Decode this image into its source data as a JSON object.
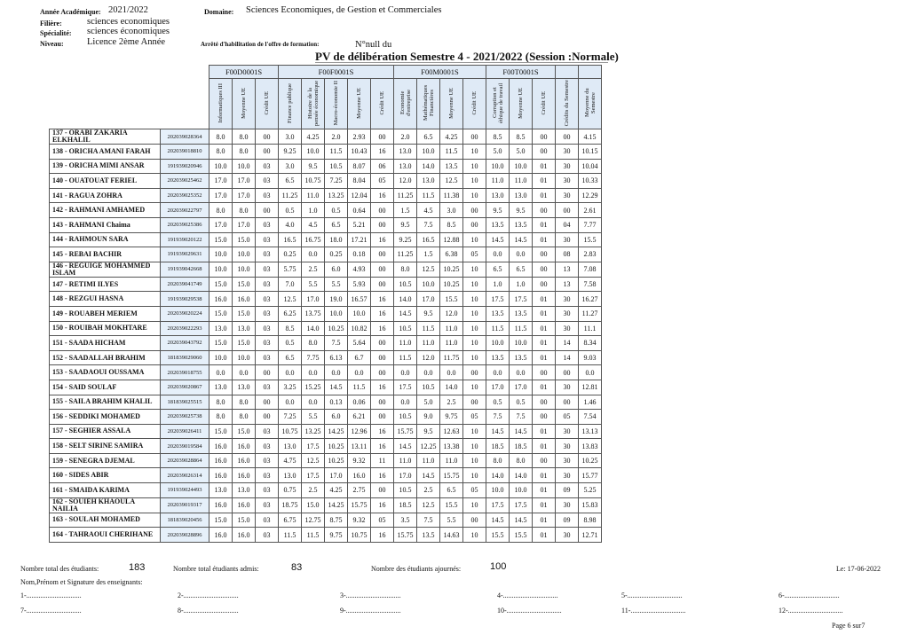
{
  "header": {
    "annee_label": "Année Académique:",
    "annee_value": "2021/2022",
    "filiere_label": "Filière:",
    "filiere_value": "sciences economiques",
    "specialite_label": "Spécialité:",
    "specialite_value": "sciences économiques",
    "niveau_label": "Niveau:",
    "niveau_value": "Licence 2ème Année",
    "domaine_label": "Domaine:",
    "domaine_value": "Sciences Economiques, de Gestion et Commerciales",
    "arrete_label": "Arrêté d'habilitation de l'offre de formation:",
    "arrete_value": "N°null  du",
    "title": "PV de délibération Semestre 4  -  2021/2022 (Session :Normale)"
  },
  "table": {
    "groups": [
      {
        "label": "F00D0001S",
        "span": 3
      },
      {
        "label": "F00F0001S",
        "span": 5
      },
      {
        "label": "F00M0001S",
        "span": 4
      },
      {
        "label": "F00T0001S",
        "span": 3
      },
      {
        "label": "",
        "span": 1
      },
      {
        "label": "",
        "span": 1
      }
    ],
    "columns": [
      "Informatiques III",
      "Moyenne UE",
      "Crédit UE",
      "Finance publique",
      "Histoire de la pensée économique",
      "Macro-économie II",
      "Moyenne UE",
      "Crédit UE",
      "Economie d'entreprise",
      "Mathématiques Financières",
      "Moyenne UE",
      "Crédit UE",
      "Corruption et éthique de travail",
      "Moyenne UE",
      "Crédit UE",
      "Crédits du Semestre",
      "Moyenne du Semestre"
    ],
    "rows": [
      {
        "name": "137 - ORABI ZAKARIA ELKHALIL",
        "id": "202039028364",
        "v": [
          "8.0",
          "8.0",
          "00",
          "3.0",
          "4.25",
          "2.0",
          "2.93",
          "00",
          "2.0",
          "6.5",
          "4.25",
          "00",
          "8.5",
          "8.5",
          "00",
          "00",
          "4.15"
        ]
      },
      {
        "name": "138 - ORICHA AMANI FARAH",
        "id": "202039018810",
        "v": [
          "8.0",
          "8.0",
          "00",
          "9.25",
          "10.0",
          "11.5",
          "10.43",
          "16",
          "13.0",
          "10.0",
          "11.5",
          "10",
          "5.0",
          "5.0",
          "00",
          "30",
          "10.15"
        ]
      },
      {
        "name": "139 - ORICHA MIMI ANSAR",
        "id": "191939020946",
        "v": [
          "10.0",
          "10.0",
          "03",
          "3.0",
          "9.5",
          "10.5",
          "8.07",
          "06",
          "13.0",
          "14.0",
          "13.5",
          "10",
          "10.0",
          "10.0",
          "01",
          "30",
          "10.04"
        ]
      },
      {
        "name": "140 - OUATOUAT FERIEL",
        "id": "202039025462",
        "v": [
          "17.0",
          "17.0",
          "03",
          "6.5",
          "10.75",
          "7.25",
          "8.04",
          "05",
          "12.0",
          "13.0",
          "12.5",
          "10",
          "11.0",
          "11.0",
          "01",
          "30",
          "10.33"
        ]
      },
      {
        "name": "141 - RAGUA ZOHRA",
        "id": "202039025352",
        "v": [
          "17.0",
          "17.0",
          "03",
          "11.25",
          "11.0",
          "13.25",
          "12.04",
          "16",
          "11.25",
          "11.5",
          "11.38",
          "10",
          "13.0",
          "13.0",
          "01",
          "30",
          "12.29"
        ]
      },
      {
        "name": "142 - RAHMANI AMHAMED",
        "id": "202039022797",
        "v": [
          "8.0",
          "8.0",
          "00",
          "0.5",
          "1.0",
          "0.5",
          "0.64",
          "00",
          "1.5",
          "4.5",
          "3.0",
          "00",
          "9.5",
          "9.5",
          "00",
          "00",
          "2.61"
        ]
      },
      {
        "name": "143 - RAHMANI Chaima",
        "id": "202039025386",
        "v": [
          "17.0",
          "17.0",
          "03",
          "4.0",
          "4.5",
          "6.5",
          "5.21",
          "00",
          "9.5",
          "7.5",
          "8.5",
          "00",
          "13.5",
          "13.5",
          "01",
          "04",
          "7.77"
        ]
      },
      {
        "name": "144 - RAHMOUN SARA",
        "id": "191939020122",
        "v": [
          "15.0",
          "15.0",
          "03",
          "16.5",
          "16.75",
          "18.0",
          "17.21",
          "16",
          "9.25",
          "16.5",
          "12.88",
          "10",
          "14.5",
          "14.5",
          "01",
          "30",
          "15.5"
        ]
      },
      {
        "name": "145 - REBAI BACHIR",
        "id": "191939029631",
        "v": [
          "10.0",
          "10.0",
          "03",
          "0.25",
          "0.0",
          "0.25",
          "0.18",
          "00",
          "11.25",
          "1.5",
          "6.38",
          "05",
          "0.0",
          "0.0",
          "00",
          "08",
          "2.83"
        ]
      },
      {
        "name": "146 - REGUIGE MOHAMMED ISLAM",
        "id": "191939042668",
        "v": [
          "10.0",
          "10.0",
          "03",
          "5.75",
          "2.5",
          "6.0",
          "4.93",
          "00",
          "8.0",
          "12.5",
          "10.25",
          "10",
          "6.5",
          "6.5",
          "00",
          "13",
          "7.08"
        ]
      },
      {
        "name": "147 - RETIMI ILYES",
        "id": "202039041749",
        "v": [
          "15.0",
          "15.0",
          "03",
          "7.0",
          "5.5",
          "5.5",
          "5.93",
          "00",
          "10.5",
          "10.0",
          "10.25",
          "10",
          "1.0",
          "1.0",
          "00",
          "13",
          "7.58"
        ]
      },
      {
        "name": "148 - REZGUI HASNA",
        "id": "191939029538",
        "v": [
          "16.0",
          "16.0",
          "03",
          "12.5",
          "17.0",
          "19.0",
          "16.57",
          "16",
          "14.0",
          "17.0",
          "15.5",
          "10",
          "17.5",
          "17.5",
          "01",
          "30",
          "16.27"
        ]
      },
      {
        "name": "149 - ROUABEH MERIEM",
        "id": "202039020224",
        "v": [
          "15.0",
          "15.0",
          "03",
          "6.25",
          "13.75",
          "10.0",
          "10.0",
          "16",
          "14.5",
          "9.5",
          "12.0",
          "10",
          "13.5",
          "13.5",
          "01",
          "30",
          "11.27"
        ]
      },
      {
        "name": "150 - ROUIBAH MOKHTARE",
        "id": "202039022293",
        "v": [
          "13.0",
          "13.0",
          "03",
          "8.5",
          "14.0",
          "10.25",
          "10.82",
          "16",
          "10.5",
          "11.5",
          "11.0",
          "10",
          "11.5",
          "11.5",
          "01",
          "30",
          "11.1"
        ]
      },
      {
        "name": "151 - SAADA HICHAM",
        "id": "202039043792",
        "v": [
          "15.0",
          "15.0",
          "03",
          "0.5",
          "8.0",
          "7.5",
          "5.64",
          "00",
          "11.0",
          "11.0",
          "11.0",
          "10",
          "10.0",
          "10.0",
          "01",
          "14",
          "8.34"
        ]
      },
      {
        "name": "152 - SAADALLAH BRAHIM",
        "id": "181839029060",
        "v": [
          "10.0",
          "10.0",
          "03",
          "6.5",
          "7.75",
          "6.13",
          "6.7",
          "00",
          "11.5",
          "12.0",
          "11.75",
          "10",
          "13.5",
          "13.5",
          "01",
          "14",
          "9.03"
        ]
      },
      {
        "name": "153 - SAADAOUI OUSSAMA",
        "id": "202039018755",
        "v": [
          "0.0",
          "0.0",
          "00",
          "0.0",
          "0.0",
          "0.0",
          "0.0",
          "00",
          "0.0",
          "0.0",
          "0.0",
          "00",
          "0.0",
          "0.0",
          "00",
          "00",
          "0.0"
        ]
      },
      {
        "name": "154 - SAID SOULAF",
        "id": "202039020867",
        "v": [
          "13.0",
          "13.0",
          "03",
          "3.25",
          "15.25",
          "14.5",
          "11.5",
          "16",
          "17.5",
          "10.5",
          "14.0",
          "10",
          "17.0",
          "17.0",
          "01",
          "30",
          "12.81"
        ]
      },
      {
        "name": "155 - SAILA BRAHIM KHALIL",
        "id": "181839025515",
        "v": [
          "8.0",
          "8.0",
          "00",
          "0.0",
          "0.0",
          "0.13",
          "0.06",
          "00",
          "0.0",
          "5.0",
          "2.5",
          "00",
          "0.5",
          "0.5",
          "00",
          "00",
          "1.46"
        ]
      },
      {
        "name": "156 - SEDDIKI MOHAMED",
        "id": "202039025738",
        "v": [
          "8.0",
          "8.0",
          "00",
          "7.25",
          "5.5",
          "6.0",
          "6.21",
          "00",
          "10.5",
          "9.0",
          "9.75",
          "05",
          "7.5",
          "7.5",
          "00",
          "05",
          "7.54"
        ]
      },
      {
        "name": "157 - SEGHIER ASSALA",
        "id": "202039026411",
        "v": [
          "15.0",
          "15.0",
          "03",
          "10.75",
          "13.25",
          "14.25",
          "12.96",
          "16",
          "15.75",
          "9.5",
          "12.63",
          "10",
          "14.5",
          "14.5",
          "01",
          "30",
          "13.13"
        ]
      },
      {
        "name": "158 - SELT SIRINE SAMIRA",
        "id": "202039019584",
        "v": [
          "16.0",
          "16.0",
          "03",
          "13.0",
          "17.5",
          "10.25",
          "13.11",
          "16",
          "14.5",
          "12.25",
          "13.38",
          "10",
          "18.5",
          "18.5",
          "01",
          "30",
          "13.83"
        ]
      },
      {
        "name": "159 - SENEGRA DJEMAL",
        "id": "202039028864",
        "v": [
          "16.0",
          "16.0",
          "03",
          "4.75",
          "12.5",
          "10.25",
          "9.32",
          "11",
          "11.0",
          "11.0",
          "11.0",
          "10",
          "8.0",
          "8.0",
          "00",
          "30",
          "10.25"
        ]
      },
      {
        "name": "160 - SIDES ABIR",
        "id": "202039026314",
        "v": [
          "16.0",
          "16.0",
          "03",
          "13.0",
          "17.5",
          "17.0",
          "16.0",
          "16",
          "17.0",
          "14.5",
          "15.75",
          "10",
          "14.0",
          "14.0",
          "01",
          "30",
          "15.77"
        ]
      },
      {
        "name": "161 - SMAIDA KARIMA",
        "id": "191939024493",
        "v": [
          "13.0",
          "13.0",
          "03",
          "0.75",
          "2.5",
          "4.25",
          "2.75",
          "00",
          "10.5",
          "2.5",
          "6.5",
          "05",
          "10.0",
          "10.0",
          "01",
          "09",
          "5.25"
        ]
      },
      {
        "name": "162 - SOUIEH KHAOULA NAILIA",
        "id": "202039019317",
        "v": [
          "16.0",
          "16.0",
          "03",
          "18.75",
          "15.0",
          "14.25",
          "15.75",
          "16",
          "18.5",
          "12.5",
          "15.5",
          "10",
          "17.5",
          "17.5",
          "01",
          "30",
          "15.83"
        ]
      },
      {
        "name": "163 - SOULAH MOHAMED",
        "id": "181839020456",
        "v": [
          "15.0",
          "15.0",
          "03",
          "6.75",
          "12.75",
          "8.75",
          "9.32",
          "05",
          "3.5",
          "7.5",
          "5.5",
          "00",
          "14.5",
          "14.5",
          "01",
          "09",
          "8.98"
        ]
      },
      {
        "name": "164 - TAHRAOUI CHERIHANE",
        "id": "202039028896",
        "v": [
          "16.0",
          "16.0",
          "03",
          "11.5",
          "11.5",
          "9.75",
          "10.75",
          "16",
          "15.75",
          "13.5",
          "14.63",
          "10",
          "15.5",
          "15.5",
          "01",
          "30",
          "12.71"
        ]
      }
    ]
  },
  "footer": {
    "total_label": "Nombre total des étudiants:",
    "total_value": "183",
    "admis_label": "Nombre total étudiants admis:",
    "admis_value": "83",
    "ajournes_label": "Nombre des étudiants ajournés:",
    "ajournes_value": "100",
    "date": "Le: 17-06-2022",
    "signature_label": "Nom,Prénom et Signature des enseignants:",
    "signatures": [
      "1-...............................",
      "2-...............................",
      "3-...............................",
      "4-...............................",
      "5-...............................",
      "6-...............................",
      "7-...............................",
      "8-...............................",
      "9-...............................",
      "10-...............................",
      "11-...............................",
      "12-..............................."
    ],
    "page": "Page 6 sur7"
  }
}
